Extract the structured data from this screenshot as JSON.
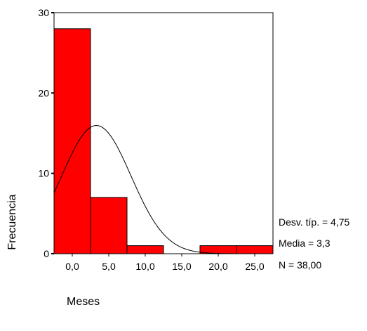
{
  "chart_data": {
    "type": "bar",
    "subtype": "histogram",
    "xlabel": "Meses",
    "ylabel": "Frecuencia",
    "ylim": [
      0,
      30
    ],
    "xlim": [
      -2.5,
      27.5
    ],
    "bin_width": 5,
    "bins": [
      {
        "center": 0,
        "count": 28
      },
      {
        "center": 5,
        "count": 7
      },
      {
        "center": 10,
        "count": 1
      },
      {
        "center": 15,
        "count": 0
      },
      {
        "center": 20,
        "count": 1
      },
      {
        "center": 25,
        "count": 1
      }
    ],
    "x_tick_values": [
      0,
      5,
      10,
      15,
      20,
      25
    ],
    "x_tick_labels": [
      "0,0",
      "5,0",
      "10,0",
      "15,0",
      "20,0",
      "25,0"
    ],
    "y_tick_values": [
      0,
      10,
      20,
      30
    ],
    "y_tick_labels": [
      "0",
      "10",
      "20",
      "30"
    ],
    "normal_curve": {
      "mean": 3.3,
      "sd": 4.75,
      "n": 38
    },
    "stats": [
      "Desv. típ. = 4,75",
      "Media = 3,3",
      "N = 38,00"
    ],
    "colors": {
      "bar_fill": "#ff0000",
      "bar_stroke": "#000000",
      "curve": "#000000"
    },
    "grid": false,
    "legend": "none"
  }
}
